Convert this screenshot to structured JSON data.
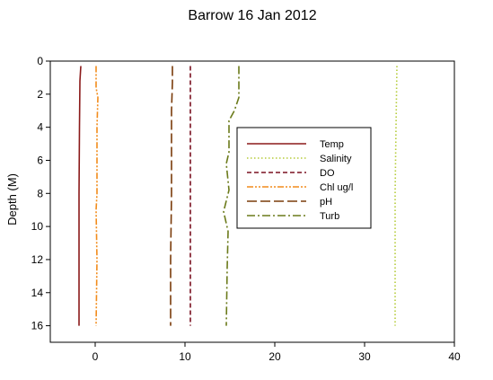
{
  "chart_data": {
    "type": "line",
    "title": "Barrow 16 Jan 2012",
    "xlabel": "",
    "ylabel": "Depth (M)",
    "xlim": [
      -5,
      40
    ],
    "ylim": [
      0,
      17
    ],
    "y_inverted": true,
    "x_ticks": [
      0,
      10,
      20,
      30,
      40
    ],
    "y_ticks": [
      0,
      2,
      4,
      6,
      8,
      10,
      12,
      14,
      16
    ],
    "grid": false,
    "legend_position": "center-right",
    "series": [
      {
        "name": "Temp",
        "color": "#8b1a1a",
        "dash": "solid",
        "points": [
          [
            -1.6,
            0.3
          ],
          [
            -1.7,
            1.2
          ],
          [
            -1.75,
            4
          ],
          [
            -1.8,
            8
          ],
          [
            -1.8,
            12
          ],
          [
            -1.8,
            16
          ]
        ]
      },
      {
        "name": "Salinity",
        "color": "#b5cc3a",
        "dash": "dotted",
        "points": [
          [
            33.6,
            0.3
          ],
          [
            33.5,
            4
          ],
          [
            33.4,
            8
          ],
          [
            33.4,
            12
          ],
          [
            33.4,
            16
          ]
        ]
      },
      {
        "name": "DO",
        "color": "#7a1020",
        "dash": "short-dash",
        "points": [
          [
            10.6,
            0.3
          ],
          [
            10.6,
            3.5
          ],
          [
            10.6,
            8
          ],
          [
            10.6,
            12
          ],
          [
            10.6,
            16
          ]
        ]
      },
      {
        "name": "Chl ug/l",
        "color": "#f28c1c",
        "dash": "dash-dot-dot",
        "points": [
          [
            0.1,
            0.3
          ],
          [
            0.1,
            1.6
          ],
          [
            0.3,
            2.2
          ],
          [
            0.2,
            4
          ],
          [
            0.2,
            8
          ],
          [
            0.1,
            9
          ],
          [
            0.2,
            12
          ],
          [
            0.1,
            16
          ]
        ]
      },
      {
        "name": "pH",
        "color": "#7a3b0a",
        "dash": "long-dash",
        "points": [
          [
            8.6,
            0.3
          ],
          [
            8.6,
            1.3
          ],
          [
            8.5,
            3
          ],
          [
            8.5,
            8
          ],
          [
            8.4,
            12
          ],
          [
            8.4,
            16
          ]
        ]
      },
      {
        "name": "Turb",
        "color": "#6b7a1a",
        "dash": "dash-dot",
        "points": [
          [
            16.0,
            0.3
          ],
          [
            16.0,
            2.2
          ],
          [
            15.5,
            3.0
          ],
          [
            14.9,
            3.6
          ],
          [
            14.9,
            5.5
          ],
          [
            14.6,
            6.2
          ],
          [
            14.9,
            7.8
          ],
          [
            14.3,
            9.1
          ],
          [
            14.8,
            10.3
          ],
          [
            14.7,
            12.5
          ],
          [
            14.6,
            16
          ]
        ]
      }
    ]
  }
}
